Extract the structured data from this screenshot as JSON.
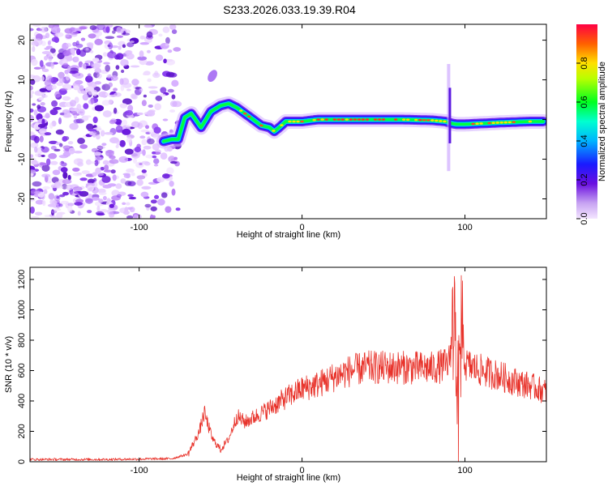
{
  "chart_data": [
    {
      "type": "heatmap",
      "title": "S233.2026.033.19.39.R04",
      "xlabel": "Height of straight line (km)",
      "ylabel": "Frequency (Hz)",
      "xlim": [
        -167,
        150
      ],
      "ylim": [
        -25,
        24
      ],
      "xticks": [
        -100,
        0,
        100
      ],
      "yticks": [
        -20,
        -10,
        0,
        10,
        20
      ],
      "colorbar": {
        "label": "Normalized spectral amplitude",
        "range": [
          0,
          1
        ],
        "ticks": [
          "0.0",
          "0.2",
          "0.4",
          "0.6",
          "0.8"
        ],
        "tick_values": [
          0,
          0.2,
          0.4,
          0.6,
          0.8
        ]
      },
      "ridge": {
        "x": [
          -85,
          -80,
          -76,
          -72,
          -68,
          -62,
          -56,
          -50,
          -45,
          -40,
          -35,
          -30,
          -25,
          -20,
          -17,
          -14,
          -10,
          -5,
          0,
          10,
          20,
          40,
          60,
          80,
          88,
          92,
          95,
          100,
          120,
          140,
          148
        ],
        "y": [
          -5.5,
          -5,
          -5,
          0.5,
          1.5,
          -2,
          2,
          3.5,
          4,
          3,
          1.5,
          0,
          -1.5,
          -2,
          -3,
          -2,
          -0.5,
          -0.5,
          -0.5,
          0,
          0,
          0,
          0,
          -0.2,
          -0.5,
          -1,
          -1.2,
          -1.2,
          -0.8,
          -0.5,
          -0.5
        ]
      }
    },
    {
      "type": "line",
      "xlabel": "Height of straight line (km)",
      "ylabel": "SNR (10 * v/v)",
      "xlim": [
        -167,
        150
      ],
      "ylim": [
        0,
        1280
      ],
      "xticks": [
        -100,
        0,
        100
      ],
      "yticks": [
        0,
        200,
        400,
        600,
        800,
        1000,
        1200
      ],
      "series": [
        {
          "name": "SNR",
          "color": "#e8322a",
          "envelope_x": [
            -167,
            -120,
            -80,
            -70,
            -63,
            -60,
            -55,
            -50,
            -45,
            -40,
            -35,
            -30,
            -20,
            -10,
            0,
            10,
            20,
            30,
            40,
            60,
            80,
            90,
            94,
            96,
            98,
            100,
            110,
            120,
            130,
            140,
            150
          ],
          "envelope_y": [
            15,
            15,
            20,
            50,
            200,
            320,
            150,
            80,
            150,
            300,
            260,
            290,
            350,
            420,
            480,
            510,
            560,
            600,
            620,
            620,
            615,
            640,
            1000,
            300,
            1000,
            640,
            600,
            570,
            530,
            500,
            460
          ]
        }
      ]
    }
  ]
}
